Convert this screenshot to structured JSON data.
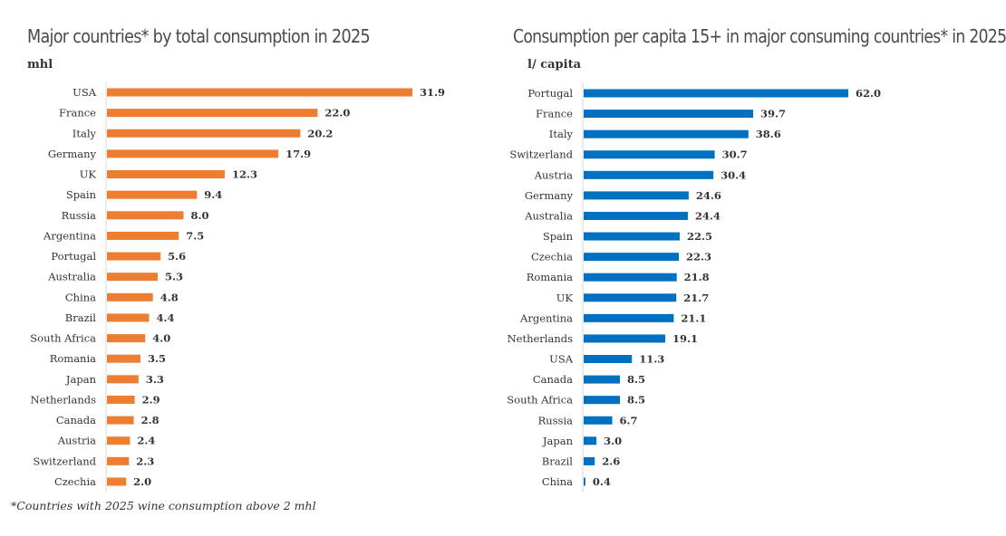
{
  "footnote": "*Countries with 2025 wine consumption above 2 mhl",
  "chart_data": [
    {
      "type": "bar",
      "orientation": "horizontal",
      "title": "Major countries* by total consumption in 2025",
      "unit": "mhl",
      "color": "#ed7d31",
      "categories": [
        "USA",
        "France",
        "Italy",
        "Germany",
        "UK",
        "Spain",
        "Russia",
        "Argentina",
        "Portugal",
        "Australia",
        "China",
        "Brazil",
        "South Africa",
        "Romania",
        "Japan",
        "Netherlands",
        "Canada",
        "Austria",
        "Switzerland",
        "Czechia"
      ],
      "values": [
        31.9,
        22.0,
        20.2,
        17.9,
        12.3,
        9.4,
        8.0,
        7.5,
        5.6,
        5.3,
        4.8,
        4.4,
        4.0,
        3.5,
        3.3,
        2.9,
        2.8,
        2.4,
        2.3,
        2.0
      ],
      "value_labels": [
        "31.9",
        "22.0",
        "20.2",
        "17.9",
        "12.3",
        "9.4",
        "8.0",
        "7.5",
        "5.6",
        "5.3",
        "4.8",
        "4.4",
        "4.0",
        "3.5",
        "3.3",
        "2.9",
        "2.8",
        "2.4",
        "2.3",
        "2.0"
      ],
      "xlim": [
        0,
        35
      ],
      "grid": false
    },
    {
      "type": "bar",
      "orientation": "horizontal",
      "title": "Consumption per capita 15+ in major consuming countries* in 2025",
      "unit": "l/ capita",
      "color": "#0070c0",
      "categories": [
        "Portugal",
        "France",
        "Italy",
        "Switzerland",
        "Austria",
        "Germany",
        "Australia",
        "Spain",
        "Czechia",
        "Romania",
        "UK",
        "Argentina",
        "Netherlands",
        "USA",
        "Canada",
        "South Africa",
        "Russia",
        "Japan",
        "Brazil",
        "China"
      ],
      "values": [
        62.0,
        39.7,
        38.6,
        30.7,
        30.4,
        24.6,
        24.4,
        22.5,
        22.3,
        21.8,
        21.7,
        21.1,
        19.1,
        11.3,
        8.5,
        8.5,
        6.7,
        3.0,
        2.6,
        0.4
      ],
      "value_labels": [
        "62.0",
        "39.7",
        "38.6",
        "30.7",
        "30.4",
        "24.6",
        "24.4",
        "22.5",
        "22.3",
        "21.8",
        "21.7",
        "21.1",
        "19.1",
        "11.3",
        "8.5",
        "8.5",
        "6.7",
        "3.0",
        "2.6",
        "0.4"
      ],
      "xlim": [
        0,
        70
      ],
      "grid": false
    }
  ]
}
